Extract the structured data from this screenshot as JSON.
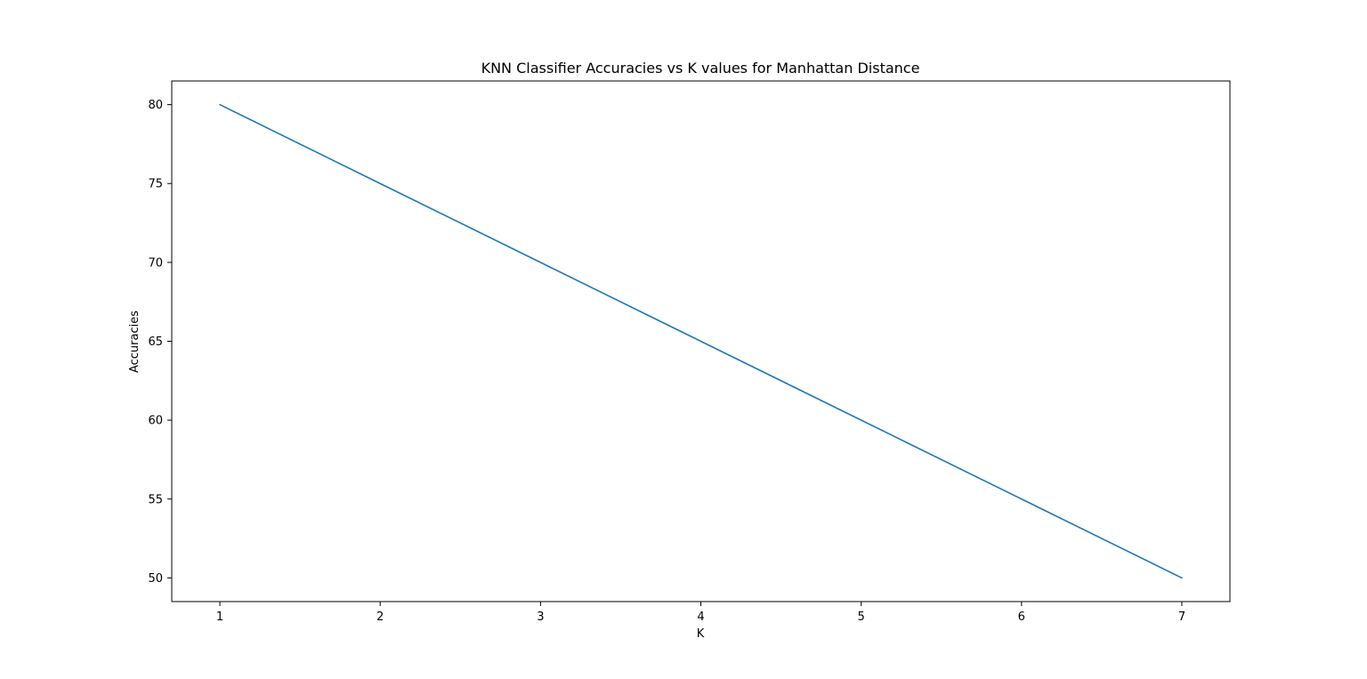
{
  "chart_data": {
    "type": "line",
    "title": "KNN Classifier Accuracies vs K values for Manhattan Distance",
    "xlabel": "K",
    "ylabel": "Accuracies",
    "x": [
      1,
      2,
      3,
      4,
      5,
      6,
      7
    ],
    "series": [
      {
        "values": [
          80,
          75,
          70,
          65,
          60,
          55,
          50
        ],
        "color": "#1f77b4"
      }
    ],
    "xlim": [
      0.7,
      7.3
    ],
    "ylim": [
      48.5,
      81.5
    ],
    "xticks": [
      1,
      2,
      3,
      4,
      5,
      6,
      7
    ],
    "yticks": [
      50,
      55,
      60,
      65,
      70,
      75,
      80
    ],
    "grid": false,
    "legend": "none"
  }
}
